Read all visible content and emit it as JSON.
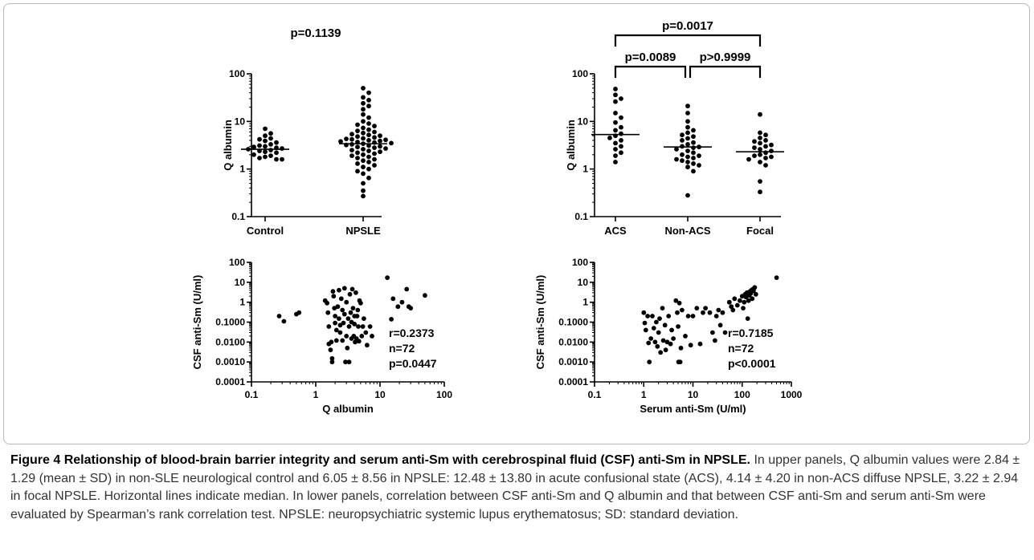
{
  "figure": {
    "caption_label": "Figure 4",
    "caption_title": "Relationship of blood-brain barrier integrity and serum anti-Sm with cerebrospinal fluid (CSF) anti-Sm in NPSLE.",
    "caption_body": "In upper panels, Q albumin values were 2.84 ± 1.29 (mean ± SD) in non-SLE neurological control and 6.05 ± 8.56 in NPSLE: 12.48 ± 13.80 in acute confusional state (ACS), 4.14 ± 4.20 in non-ACS diffuse NPSLE, 3.22 ± 2.94 in focal NPSLE. Horizontal lines indicate median. In lower panels, correlation between CSF anti-Sm and Q albumin and that between CSF anti-Sm and serum anti-Sm were evaluated by Spearman’s rank correlation test. NPSLE: neuropsychiatric systemic lupus erythematosus; SD: standard deviation."
  },
  "chart_data": [
    {
      "type": "scatter",
      "xlabel": "",
      "ylabel": "Q albumin",
      "y_scale": "log",
      "ylim": [
        0.1,
        100
      ],
      "y_ticks": [
        "0.1",
        "1",
        "10",
        "100"
      ],
      "categories": [
        "Control",
        "NPSLE"
      ],
      "annotation": "p=0.1139",
      "median": [
        2.6,
        3.4
      ],
      "groups": [
        {
          "name": "Control",
          "values": [
            7.0,
            5.6,
            5.0,
            4.4,
            4.2,
            3.9,
            3.6,
            3.3,
            3.1,
            3.0,
            2.9,
            2.8,
            2.7,
            2.6,
            2.5,
            2.4,
            2.3,
            2.2,
            2.0,
            1.9,
            1.8,
            1.7,
            1.6,
            1.6
          ]
        },
        {
          "name": "NPSLE",
          "values": [
            50,
            40,
            32,
            28,
            24,
            21,
            18,
            14,
            12,
            10,
            9,
            8.5,
            8,
            7.3,
            6.7,
            6.3,
            6.0,
            5.7,
            5.4,
            5.2,
            5.0,
            4.8,
            4.6,
            4.4,
            4.3,
            4.2,
            4.1,
            4.0,
            3.9,
            3.8,
            3.7,
            3.6,
            3.5,
            3.4,
            3.3,
            3.2,
            3.1,
            3.0,
            2.9,
            2.8,
            2.7,
            2.6,
            2.5,
            2.4,
            2.3,
            2.2,
            2.1,
            2.0,
            1.9,
            1.8,
            1.7,
            1.6,
            1.5,
            1.4,
            1.3,
            1.2,
            1.1,
            1.0,
            0.9,
            0.8,
            0.65,
            0.5,
            0.35,
            0.27
          ]
        }
      ]
    },
    {
      "type": "scatter",
      "xlabel": "",
      "ylabel": "Q albumin",
      "y_scale": "log",
      "ylim": [
        0.1,
        100
      ],
      "y_ticks": [
        "0.1",
        "1",
        "10",
        "100"
      ],
      "categories": [
        "ACS",
        "Non-ACS",
        "Focal"
      ],
      "median": [
        5.3,
        2.9,
        2.3
      ],
      "brackets": [
        {
          "from": "ACS",
          "to": "Focal",
          "label": "p=0.0017"
        },
        {
          "from": "ACS",
          "to": "Non-ACS",
          "label": "p=0.0089"
        },
        {
          "from": "Non-ACS",
          "to": "Focal",
          "label": "p>0.9999"
        }
      ],
      "groups": [
        {
          "name": "ACS",
          "values": [
            48,
            36,
            30,
            26,
            15,
            12,
            9.5,
            7.5,
            6.5,
            5.5,
            5.0,
            4.5,
            4.0,
            3.5,
            3.0,
            2.6,
            2.2,
            1.9,
            1.4
          ]
        },
        {
          "name": "Non-ACS",
          "values": [
            21,
            15,
            10,
            7.5,
            6.5,
            5.8,
            5.2,
            4.8,
            4.4,
            4.0,
            3.6,
            3.3,
            3.0,
            2.9,
            2.8,
            2.6,
            2.4,
            2.2,
            2.0,
            1.9,
            1.8,
            1.7,
            1.6,
            1.5,
            1.4,
            1.3,
            1.2,
            1.1,
            0.9,
            0.28
          ]
        },
        {
          "name": "Focal",
          "values": [
            14,
            5.8,
            5.2,
            4.5,
            4.0,
            3.8,
            3.5,
            3.2,
            3.0,
            2.8,
            2.6,
            2.4,
            2.2,
            2.0,
            1.9,
            1.8,
            1.7,
            1.6,
            1.4,
            1.2,
            0.55,
            0.33
          ]
        }
      ]
    },
    {
      "type": "scatter",
      "xlabel": "Q albumin",
      "ylabel": "CSF anti-Sm (U/ml)",
      "x_scale": "log",
      "y_scale": "log",
      "xlim": [
        0.1,
        100
      ],
      "ylim": [
        0.0001,
        100
      ],
      "x_ticks": [
        "0.1",
        "1",
        "10",
        "100"
      ],
      "y_ticks": [
        "0.0001",
        "0.0010",
        "0.0100",
        "0.1000",
        "1",
        "10",
        "100"
      ],
      "stats": [
        "r=0.2373",
        "n=72",
        "p=0.0447"
      ],
      "points": [
        [
          0.27,
          0.2
        ],
        [
          0.32,
          0.11
        ],
        [
          0.5,
          0.25
        ],
        [
          0.55,
          0.3
        ],
        [
          1.4,
          1.2
        ],
        [
          1.5,
          0.9
        ],
        [
          1.55,
          0.3
        ],
        [
          1.6,
          0.06
        ],
        [
          1.6,
          0.008
        ],
        [
          1.7,
          0.004
        ],
        [
          1.75,
          0.01
        ],
        [
          1.8,
          0.0015
        ],
        [
          1.8,
          0.001
        ],
        [
          1.85,
          3.5
        ],
        [
          1.9,
          2.0
        ],
        [
          1.95,
          0.5
        ],
        [
          2.0,
          0.2
        ],
        [
          2.0,
          0.09
        ],
        [
          2.1,
          0.04
        ],
        [
          2.1,
          0.012
        ],
        [
          2.2,
          0.6
        ],
        [
          2.3,
          4.0
        ],
        [
          2.3,
          0.15
        ],
        [
          2.4,
          0.07
        ],
        [
          2.4,
          0.03
        ],
        [
          2.5,
          1.5
        ],
        [
          2.6,
          0.4
        ],
        [
          2.6,
          0.012
        ],
        [
          2.7,
          0.09
        ],
        [
          2.8,
          0.25
        ],
        [
          2.8,
          5.0
        ],
        [
          2.9,
          0.001
        ],
        [
          3.0,
          1.0
        ],
        [
          3.0,
          0.02
        ],
        [
          3.1,
          0.005
        ],
        [
          3.2,
          0.15
        ],
        [
          3.3,
          0.06
        ],
        [
          3.3,
          0.001
        ],
        [
          3.4,
          2.5
        ],
        [
          3.5,
          0.3
        ],
        [
          3.6,
          0.1
        ],
        [
          3.6,
          0.015
        ],
        [
          3.7,
          4.5
        ],
        [
          3.8,
          0.5
        ],
        [
          3.9,
          0.02
        ],
        [
          4.0,
          0.2
        ],
        [
          4.0,
          0.08
        ],
        [
          4.1,
          0.01
        ],
        [
          4.2,
          3.0
        ],
        [
          4.3,
          0.015
        ],
        [
          4.4,
          0.2
        ],
        [
          4.5,
          0.4
        ],
        [
          4.6,
          0.06
        ],
        [
          4.7,
          0.011
        ],
        [
          4.8,
          1.2
        ],
        [
          5.0,
          0.9
        ],
        [
          5.2,
          0.02
        ],
        [
          5.4,
          0.06
        ],
        [
          5.6,
          0.15
        ],
        [
          6.0,
          0.03
        ],
        [
          6.3,
          0.007
        ],
        [
          7.0,
          0.06
        ],
        [
          7.5,
          0.02
        ],
        [
          13,
          17
        ],
        [
          15,
          0.14
        ],
        [
          16,
          1.5
        ],
        [
          19,
          0.6
        ],
        [
          22,
          1.0
        ],
        [
          26,
          4.5
        ],
        [
          28,
          0.6
        ],
        [
          30,
          0.5
        ],
        [
          50,
          2.2
        ]
      ]
    },
    {
      "type": "scatter",
      "xlabel": "Serum anti-Sm (U/ml)",
      "ylabel": "CSF anti-Sm (U/ml)",
      "x_scale": "log",
      "y_scale": "log",
      "xlim": [
        0.1,
        1000
      ],
      "ylim": [
        0.0001,
        100
      ],
      "x_ticks": [
        "0.1",
        "1",
        "10",
        "100",
        "1000"
      ],
      "y_ticks": [
        "0.0001",
        "0.0010",
        "0.0100",
        "0.1000",
        "1",
        "10",
        "100"
      ],
      "stats": [
        "r=0.7185",
        "n=72",
        "p<0.0001"
      ],
      "points": [
        [
          1.0,
          0.3
        ],
        [
          1.05,
          0.09
        ],
        [
          1.1,
          0.04
        ],
        [
          1.2,
          0.2
        ],
        [
          1.25,
          0.009
        ],
        [
          1.3,
          0.001
        ],
        [
          1.4,
          0.015
        ],
        [
          1.5,
          0.2
        ],
        [
          1.6,
          0.05
        ],
        [
          1.7,
          0.01
        ],
        [
          1.8,
          0.1
        ],
        [
          1.9,
          0.006
        ],
        [
          2.0,
          0.03
        ],
        [
          2.1,
          0.15
        ],
        [
          2.2,
          0.003
        ],
        [
          2.4,
          0.5
        ],
        [
          2.5,
          0.012
        ],
        [
          2.7,
          0.07
        ],
        [
          2.8,
          0.004
        ],
        [
          3.0,
          0.01
        ],
        [
          3.2,
          0.2
        ],
        [
          3.5,
          0.008
        ],
        [
          3.7,
          0.04
        ],
        [
          4.0,
          0.015
        ],
        [
          4.5,
          1.2
        ],
        [
          4.8,
          0.3
        ],
        [
          5.0,
          0.06
        ],
        [
          5.1,
          0.001
        ],
        [
          5.3,
          0.9
        ],
        [
          5.5,
          0.001
        ],
        [
          5.7,
          0.005
        ],
        [
          6.0,
          0.4
        ],
        [
          7.0,
          0.02
        ],
        [
          8.0,
          0.2
        ],
        [
          9.0,
          0.007
        ],
        [
          10,
          0.2
        ],
        [
          12,
          0.5
        ],
        [
          14,
          0.008
        ],
        [
          16,
          0.3
        ],
        [
          18,
          0.5
        ],
        [
          22,
          0.3
        ],
        [
          25,
          0.03
        ],
        [
          28,
          0.012
        ],
        [
          30,
          0.2
        ],
        [
          33,
          0.4
        ],
        [
          36,
          0.07
        ],
        [
          40,
          0.3
        ],
        [
          45,
          0.03
        ],
        [
          55,
          1.0
        ],
        [
          60,
          0.6
        ],
        [
          65,
          0.4
        ],
        [
          70,
          1.5
        ],
        [
          80,
          0.7
        ],
        [
          90,
          1.2
        ],
        [
          100,
          2.0
        ],
        [
          105,
          0.5
        ],
        [
          110,
          1.0
        ],
        [
          115,
          2.5
        ],
        [
          120,
          1.8
        ],
        [
          125,
          3.0
        ],
        [
          130,
          0.15
        ],
        [
          135,
          1.2
        ],
        [
          140,
          2.2
        ],
        [
          145,
          3.5
        ],
        [
          150,
          2.8
        ],
        [
          155,
          4.0
        ],
        [
          160,
          1.5
        ],
        [
          165,
          4.5
        ],
        [
          170,
          3.8
        ],
        [
          180,
          5.5
        ],
        [
          190,
          2.5
        ],
        [
          500,
          17
        ]
      ]
    }
  ]
}
